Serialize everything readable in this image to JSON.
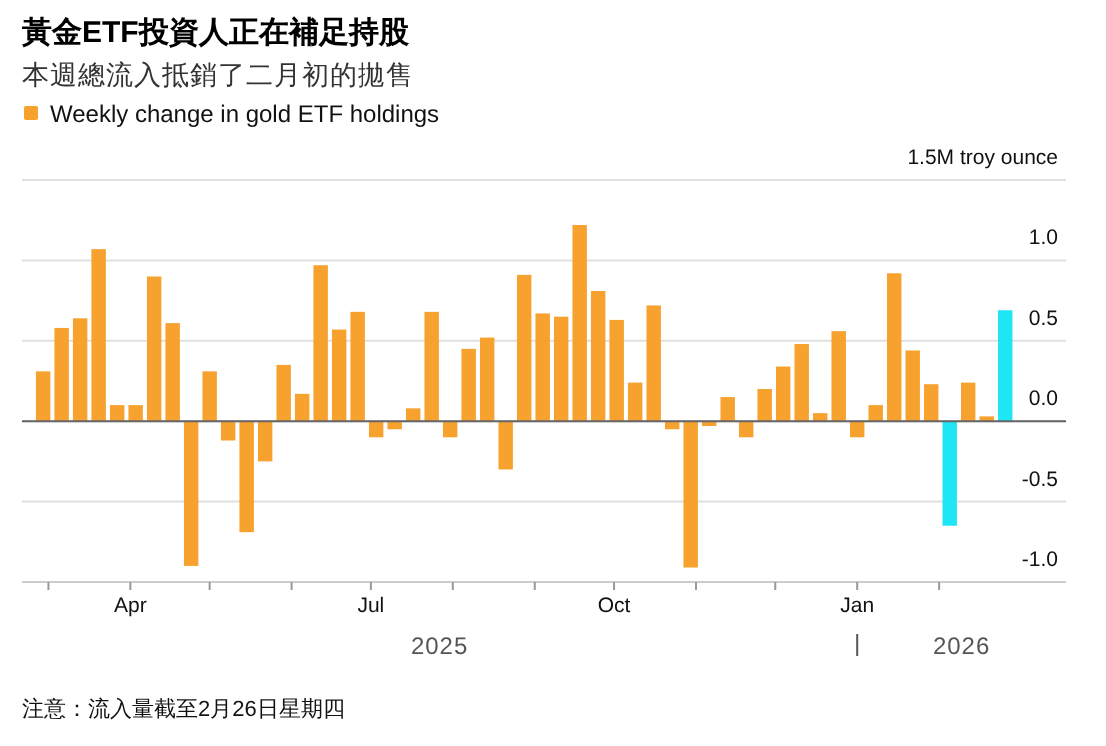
{
  "chart_data": {
    "type": "bar",
    "title": "黃金ETF投資人正在補足持股",
    "subtitle": "本週總流入抵銷了二月初的拋售",
    "x": [
      "2025-02-27",
      "2025-03-06",
      "2025-03-13",
      "2025-03-20",
      "2025-03-27",
      "2025-04-03",
      "2025-04-10",
      "2025-04-17",
      "2025-04-24",
      "2025-05-01",
      "2025-05-08",
      "2025-05-15",
      "2025-05-22",
      "2025-05-29",
      "2025-06-05",
      "2025-06-12",
      "2025-06-19",
      "2025-06-26",
      "2025-07-03",
      "2025-07-10",
      "2025-07-17",
      "2025-07-24",
      "2025-07-31",
      "2025-08-07",
      "2025-08-14",
      "2025-08-21",
      "2025-08-28",
      "2025-09-04",
      "2025-09-11",
      "2025-09-18",
      "2025-09-25",
      "2025-10-02",
      "2025-10-09",
      "2025-10-16",
      "2025-10-23",
      "2025-10-30",
      "2025-11-06",
      "2025-11-13",
      "2025-11-20",
      "2025-11-27",
      "2025-12-04",
      "2025-12-11",
      "2025-12-18",
      "2025-12-25",
      "2026-01-01",
      "2026-01-08",
      "2026-01-15",
      "2026-01-22",
      "2026-01-29",
      "2026-02-05",
      "2026-02-12",
      "2026-02-19",
      "2026-02-26"
    ],
    "series": [
      {
        "name": "Weekly change in gold ETF holdings",
        "color": "#f7a12f",
        "colors": [
          "#f7a12f",
          "#f7a12f",
          "#f7a12f",
          "#f7a12f",
          "#f7a12f",
          "#f7a12f",
          "#f7a12f",
          "#f7a12f",
          "#f7a12f",
          "#f7a12f",
          "#f7a12f",
          "#f7a12f",
          "#f7a12f",
          "#f7a12f",
          "#f7a12f",
          "#f7a12f",
          "#f7a12f",
          "#f7a12f",
          "#f7a12f",
          "#f7a12f",
          "#f7a12f",
          "#f7a12f",
          "#f7a12f",
          "#f7a12f",
          "#f7a12f",
          "#f7a12f",
          "#f7a12f",
          "#f7a12f",
          "#f7a12f",
          "#f7a12f",
          "#f7a12f",
          "#f7a12f",
          "#f7a12f",
          "#f7a12f",
          "#f7a12f",
          "#f7a12f",
          "#f7a12f",
          "#f7a12f",
          "#f7a12f",
          "#f7a12f",
          "#f7a12f",
          "#f7a12f",
          "#f7a12f",
          "#f7a12f",
          "#f7a12f",
          "#f7a12f",
          "#f7a12f",
          "#f7a12f",
          "#f7a12f",
          "#1ee6f5",
          "#f7a12f",
          "#f7a12f",
          "#1ee6f5"
        ],
        "values": [
          0.31,
          0.58,
          0.64,
          1.07,
          0.1,
          0.1,
          0.9,
          0.61,
          -0.9,
          0.31,
          -0.12,
          -0.69,
          -0.25,
          0.35,
          0.17,
          0.97,
          0.57,
          0.68,
          -0.1,
          -0.05,
          0.08,
          0.68,
          -0.1,
          0.45,
          0.52,
          -0.3,
          0.91,
          0.67,
          0.65,
          1.22,
          0.81,
          0.63,
          0.24,
          0.72,
          -0.05,
          -0.91,
          -0.03,
          0.15,
          -0.1,
          0.2,
          0.34,
          0.48,
          0.05,
          0.56,
          -0.1,
          0.1,
          0.92,
          0.44,
          0.23,
          -0.65,
          0.24,
          0.03,
          0.69
        ]
      }
    ],
    "xlim": [
      "2025-02-19",
      "2026-03-21"
    ],
    "xticks": [
      {
        "value": "2025-03-01",
        "label": null
      },
      {
        "value": "2025-04-01",
        "label": "Apr"
      },
      {
        "value": "2025-05-01",
        "label": null
      },
      {
        "value": "2025-06-01",
        "label": null
      },
      {
        "value": "2025-07-01",
        "label": "Jul"
      },
      {
        "value": "2025-08-01",
        "label": null
      },
      {
        "value": "2025-09-01",
        "label": null
      },
      {
        "value": "2025-10-01",
        "label": "Oct"
      },
      {
        "value": "2025-11-01",
        "label": null
      },
      {
        "value": "2025-12-01",
        "label": null
      },
      {
        "value": "2026-01-01",
        "label": "Jan"
      },
      {
        "value": "2026-02-01",
        "label": null
      }
    ],
    "ylim": [
      -1.0,
      1.5
    ],
    "yticks": [
      {
        "value": -1.0,
        "label": "-1.0"
      },
      -0.5,
      {
        "value": 0,
        "label": "0.0"
      },
      0.5,
      {
        "value": 1.0,
        "label": "1.0"
      },
      {
        "value": 1.5,
        "label": "1.5M troy ounce"
      }
    ],
    "grid": "y",
    "legend": "top left",
    "annotations": [
      "2025",
      "2026",
      "注意：流入量截至2月26日星期四"
    ]
  }
}
